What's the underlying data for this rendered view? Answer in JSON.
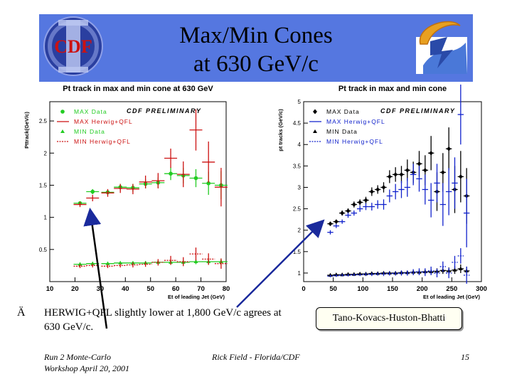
{
  "slide": {
    "title_line1": "Max/Min Cones",
    "title_line2": "at 630 GeV/c",
    "bullet_symbol": "Ä",
    "bullet_text": "HERWIG+QFL slightly lower at 1,800 GeV/c agrees at 630 GeV/c.",
    "callout": "Tano-Kovacs-Huston-Bhatti",
    "footer_left_line1": "Run 2 Monte-Carlo",
    "footer_left_line2": "Workshop April 20, 2001",
    "footer_center": "Rick Field - Florida/CDF",
    "footer_right": "15",
    "logo_left_text": "CDF",
    "colors": {
      "banner": "#5577e0",
      "green": "#22cc22",
      "red": "#cc1111",
      "blue": "#1122cc",
      "black": "#000000"
    }
  },
  "chart_data": [
    {
      "type": "scatter",
      "title": "Pt track in max and min cone at 630 GeV",
      "annotation": "CDF PRELIMINARY",
      "xlabel": "Et of leading Jet (GeV)",
      "ylabel": "Pttrack(GeV/c)",
      "xlim": [
        10,
        80
      ],
      "ylim": [
        0,
        2.8
      ],
      "xticks": [
        10,
        20,
        30,
        40,
        50,
        60,
        70,
        80
      ],
      "yticks": [
        0.5,
        1,
        1.5,
        2,
        2.5
      ],
      "legend_position": "top-left",
      "series": [
        {
          "name": "MAX Data",
          "style": "data-circle",
          "color": "#22cc22",
          "x": [
            22,
            27,
            33,
            38,
            43,
            48,
            53,
            58,
            63,
            68,
            73,
            78
          ],
          "y": [
            1.22,
            1.4,
            1.39,
            1.47,
            1.46,
            1.52,
            1.54,
            1.68,
            1.65,
            1.61,
            1.53,
            1.5
          ],
          "err": [
            0.03,
            0.04,
            0.04,
            0.05,
            0.06,
            0.07,
            0.08,
            0.1,
            0.12,
            0.14,
            0.18,
            0.22
          ]
        },
        {
          "name": "MAX Herwig+QFL",
          "style": "mc-solid",
          "color": "#cc1111",
          "x": [
            22,
            27,
            33,
            38,
            43,
            48,
            53,
            58,
            63,
            68,
            73,
            78
          ],
          "y": [
            1.2,
            1.3,
            1.38,
            1.45,
            1.44,
            1.55,
            1.57,
            1.92,
            1.67,
            2.36,
            1.86,
            1.47
          ],
          "err": [
            0.04,
            0.05,
            0.06,
            0.07,
            0.08,
            0.1,
            0.12,
            0.15,
            0.2,
            0.32,
            0.32,
            0.3
          ]
        },
        {
          "name": "MIN Data",
          "style": "data-triangle",
          "color": "#22cc22",
          "x": [
            22,
            27,
            33,
            38,
            43,
            48,
            53,
            58,
            63,
            68,
            73,
            78
          ],
          "y": [
            0.27,
            0.28,
            0.28,
            0.29,
            0.29,
            0.29,
            0.3,
            0.3,
            0.3,
            0.31,
            0.31,
            0.31
          ],
          "err": [
            0.02,
            0.02,
            0.02,
            0.02,
            0.02,
            0.03,
            0.03,
            0.03,
            0.04,
            0.04,
            0.05,
            0.05
          ]
        },
        {
          "name": "MIN Herwig+QFL",
          "style": "mc-dotted",
          "color": "#cc1111",
          "x": [
            22,
            27,
            33,
            38,
            43,
            48,
            53,
            58,
            63,
            68,
            73,
            78
          ],
          "y": [
            0.24,
            0.25,
            0.24,
            0.25,
            0.26,
            0.27,
            0.3,
            0.33,
            0.31,
            0.43,
            0.35,
            0.28
          ],
          "err": [
            0.03,
            0.03,
            0.03,
            0.03,
            0.04,
            0.04,
            0.05,
            0.07,
            0.07,
            0.1,
            0.09,
            0.08
          ]
        }
      ]
    },
    {
      "type": "scatter",
      "title": "Pt track in max and min cone",
      "annotation": "CDF PRELIMINARY",
      "xlabel": "Et of leading Jet (GeV)",
      "ylabel": "pt tracks (GeV/c)",
      "xlim": [
        0,
        300
      ],
      "ylim": [
        0.8,
        5
      ],
      "xticks": [
        0,
        50,
        100,
        150,
        200,
        250,
        300
      ],
      "yticks": [
        1,
        1.5,
        2,
        2.5,
        3,
        3.5,
        4,
        4.5,
        5
      ],
      "legend_position": "top-left",
      "series": [
        {
          "name": "MAX Data",
          "style": "data-diamond",
          "color": "#000000",
          "x": [
            45,
            55,
            65,
            75,
            85,
            95,
            105,
            115,
            125,
            135,
            145,
            155,
            165,
            175,
            185,
            195,
            205,
            215,
            225,
            235,
            245,
            255,
            265,
            275
          ],
          "y": [
            2.15,
            2.2,
            2.4,
            2.45,
            2.6,
            2.65,
            2.7,
            2.9,
            2.95,
            3.0,
            3.25,
            3.3,
            3.3,
            3.4,
            3.35,
            3.55,
            3.4,
            3.8,
            2.9,
            3.35,
            3.9,
            2.95,
            3.25,
            2.8
          ],
          "err": [
            0.05,
            0.05,
            0.06,
            0.06,
            0.07,
            0.07,
            0.08,
            0.1,
            0.1,
            0.12,
            0.15,
            0.17,
            0.2,
            0.25,
            0.25,
            0.3,
            0.35,
            0.4,
            0.45,
            0.45,
            0.5,
            0.55,
            0.6,
            0.65
          ]
        },
        {
          "name": "MAX Herwig+QFL",
          "style": "mc-solid",
          "color": "#1122cc",
          "x": [
            45,
            55,
            65,
            75,
            85,
            95,
            105,
            115,
            125,
            135,
            145,
            155,
            165,
            175,
            185,
            195,
            205,
            215,
            225,
            235,
            245,
            255,
            265,
            275
          ],
          "y": [
            1.95,
            2.1,
            2.2,
            2.35,
            2.4,
            2.5,
            2.55,
            2.55,
            2.6,
            2.6,
            2.8,
            2.9,
            2.95,
            3.0,
            3.3,
            3.2,
            2.95,
            2.7,
            3.1,
            2.6,
            2.9,
            3.1,
            4.7,
            2.4
          ],
          "err": [
            0.05,
            0.05,
            0.05,
            0.06,
            0.06,
            0.07,
            0.08,
            0.09,
            0.1,
            0.12,
            0.15,
            0.18,
            0.2,
            0.22,
            0.25,
            0.3,
            0.35,
            0.4,
            0.45,
            0.5,
            0.55,
            0.6,
            0.7,
            0.8
          ]
        },
        {
          "name": "MIN Data",
          "style": "data-triangle",
          "color": "#000000",
          "x": [
            45,
            55,
            65,
            75,
            85,
            95,
            105,
            115,
            125,
            135,
            145,
            155,
            165,
            175,
            185,
            195,
            205,
            215,
            225,
            235,
            245,
            255,
            265,
            275
          ],
          "y": [
            0.95,
            0.96,
            0.96,
            0.97,
            0.97,
            0.98,
            0.98,
            0.99,
            0.99,
            1.0,
            1.0,
            1.0,
            1.01,
            1.01,
            1.02,
            1.02,
            1.03,
            1.03,
            1.04,
            1.06,
            1.05,
            1.07,
            1.1,
            1.05
          ],
          "err": [
            0.02,
            0.02,
            0.02,
            0.02,
            0.02,
            0.02,
            0.02,
            0.03,
            0.03,
            0.03,
            0.03,
            0.04,
            0.04,
            0.04,
            0.05,
            0.05,
            0.06,
            0.06,
            0.07,
            0.08,
            0.08,
            0.09,
            0.1,
            0.1
          ]
        },
        {
          "name": "MIN Herwig+QFL",
          "style": "mc-dotted",
          "color": "#1122cc",
          "x": [
            45,
            55,
            65,
            75,
            85,
            95,
            105,
            115,
            125,
            135,
            145,
            155,
            165,
            175,
            185,
            195,
            205,
            215,
            225,
            235,
            245,
            255,
            265,
            275
          ],
          "y": [
            0.93,
            0.94,
            0.95,
            0.95,
            0.96,
            0.96,
            0.97,
            0.97,
            0.98,
            0.98,
            0.99,
            0.99,
            1.0,
            1.0,
            1.02,
            1.03,
            1.02,
            1.05,
            1.0,
            1.15,
            1.0,
            1.25,
            1.4,
            0.95
          ],
          "err": [
            0.03,
            0.03,
            0.03,
            0.03,
            0.03,
            0.03,
            0.04,
            0.04,
            0.04,
            0.05,
            0.05,
            0.05,
            0.06,
            0.06,
            0.07,
            0.08,
            0.09,
            0.1,
            0.1,
            0.12,
            0.12,
            0.15,
            0.18,
            0.2
          ]
        }
      ]
    }
  ]
}
